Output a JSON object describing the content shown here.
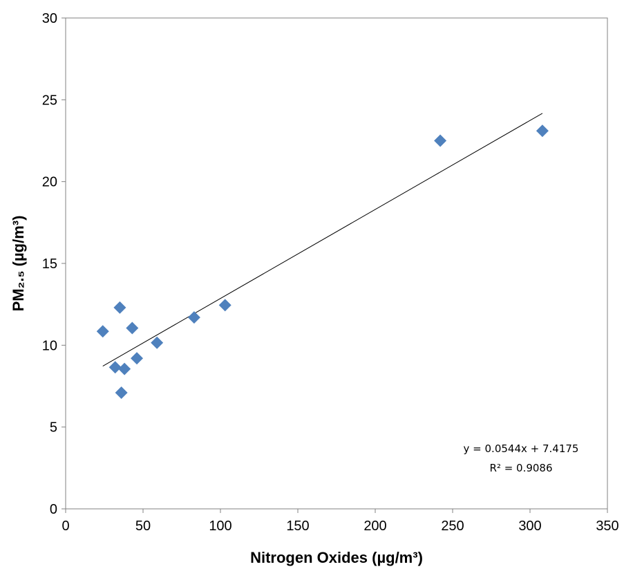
{
  "chart_data": {
    "type": "scatter",
    "title": "",
    "xlabel": "Nitrogen Oxides (µg/m³)",
    "ylabel": "PM₂.₅ (µg/m³)",
    "xlim": [
      0,
      350
    ],
    "ylim": [
      0,
      30
    ],
    "xticks": [
      0,
      50,
      100,
      150,
      200,
      250,
      300,
      350
    ],
    "yticks": [
      0,
      5,
      10,
      15,
      20,
      25,
      30
    ],
    "grid": false,
    "legend": "none",
    "marker": "diamond",
    "marker_color": "#4F81BD",
    "series": [
      {
        "x": [
          24,
          32,
          35,
          36,
          38,
          43,
          46,
          59,
          83,
          103,
          242,
          308
        ],
        "y": [
          10.85,
          8.65,
          12.3,
          7.1,
          8.55,
          11.05,
          9.2,
          10.15,
          11.7,
          12.45,
          22.5,
          23.1
        ]
      }
    ],
    "trendline": {
      "type": "linear",
      "slope": 0.0544,
      "intercept": 7.4175,
      "x_range": [
        24,
        308
      ],
      "equation": "y = 0.0544x + 7.4175",
      "r2_label": "R² = 0.9086"
    }
  }
}
